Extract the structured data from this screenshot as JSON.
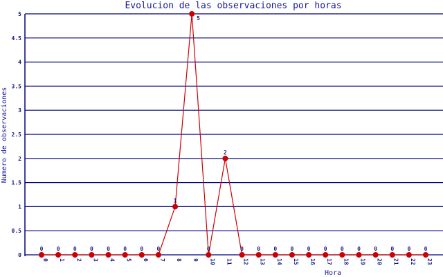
{
  "chart_data": {
    "type": "line",
    "title": "Evolucion de las observaciones por horas",
    "xlabel": "Hora",
    "ylabel": "Numero de observaciones",
    "categories": [
      "0",
      "1",
      "2",
      "3",
      "4",
      "5",
      "6",
      "7",
      "8",
      "9",
      "10",
      "11",
      "12",
      "13",
      "14",
      "15",
      "16",
      "17",
      "18",
      "19",
      "20",
      "21",
      "22",
      "23"
    ],
    "series": [
      {
        "values": [
          0,
          0,
          0,
          0,
          0,
          0,
          0,
          0,
          1,
          5,
          0,
          2,
          0,
          0,
          0,
          0,
          0,
          0,
          0,
          0,
          0,
          0,
          0,
          0
        ]
      }
    ],
    "ylim": [
      0,
      5
    ],
    "yticks": [
      "0",
      "0.5",
      "1",
      "1.5",
      "2",
      "2.5",
      "3",
      "3.5",
      "4",
      "4.5",
      "5"
    ],
    "grid": true,
    "colors": {
      "line": "#cc0000",
      "marker": "#cc0000",
      "grid": "#000080",
      "text": "#1a1a9a"
    }
  }
}
